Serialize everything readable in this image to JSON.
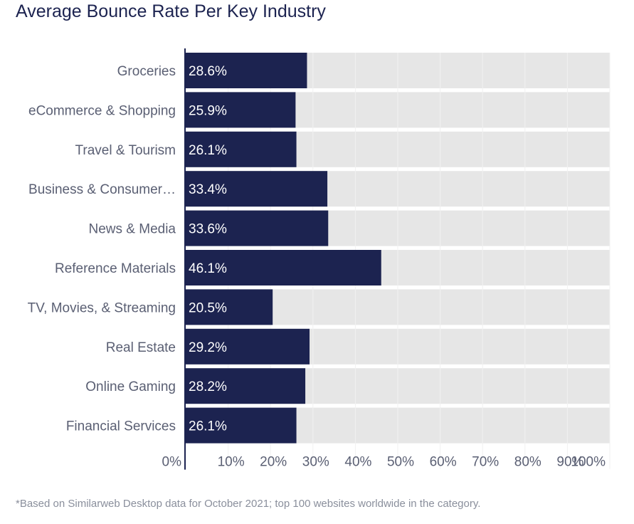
{
  "chart_data": {
    "type": "bar",
    "orientation": "horizontal",
    "title": "Average Bounce Rate Per Key Industry",
    "categories": [
      "Groceries",
      "eCommerce & Shopping",
      "Travel & Tourism",
      "Business & Consumer…",
      "News & Media",
      "Reference Materials",
      "TV, Movies, & Streaming",
      "Real Estate",
      "Online Gaming",
      "Financial Services"
    ],
    "values": [
      28.6,
      25.9,
      26.1,
      33.4,
      33.6,
      46.1,
      20.5,
      29.2,
      28.2,
      26.1
    ],
    "value_labels": [
      "28.6%",
      "25.9%",
      "26.1%",
      "33.4%",
      "33.6%",
      "46.1%",
      "20.5%",
      "29.2%",
      "28.2%",
      "26.1%"
    ],
    "xlim": [
      0,
      100
    ],
    "x_ticks": [
      "0%",
      "10%",
      "20%",
      "30%",
      "40%",
      "50%",
      "60%",
      "70%",
      "80%",
      "90%",
      "100%"
    ],
    "xlabel": "",
    "ylabel": "",
    "legend": "none",
    "grid": true,
    "colors": {
      "bar": "#1c2350",
      "track": "#e6e6e6",
      "label_text": "#5a5f73",
      "value_text": "#ffffff",
      "axis": "#1c2350",
      "grid": "#ffffff"
    }
  },
  "footnote": "*Based on Similarweb Desktop data for October 2021; top 100 websites worldwide in the category."
}
